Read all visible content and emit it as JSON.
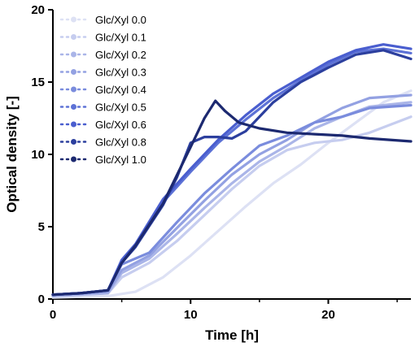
{
  "chart_data": {
    "type": "line",
    "title": "",
    "xlabel": "Time [h]",
    "ylabel": "Optical density [-]",
    "xlim": [
      0,
      26
    ],
    "ylim": [
      0,
      20
    ],
    "xticks": [
      0,
      10,
      20
    ],
    "yticks": [
      0,
      5,
      10,
      15,
      20
    ],
    "grid": false,
    "legend_position": "top-left",
    "series": [
      {
        "name": "Glc/Xyl 0.0",
        "color": "#dde1f4",
        "points": [
          [
            0,
            0.1
          ],
          [
            2,
            0.15
          ],
          [
            4,
            0.2
          ],
          [
            6,
            0.5
          ],
          [
            8,
            1.5
          ],
          [
            10,
            3.0
          ],
          [
            12,
            4.7
          ],
          [
            14,
            6.4
          ],
          [
            16,
            8.0
          ],
          [
            18,
            9.3
          ],
          [
            20,
            10.8
          ],
          [
            22,
            12.2
          ],
          [
            24,
            13.6
          ],
          [
            26,
            14.4
          ]
        ]
      },
      {
        "name": "Glc/Xyl 0.1",
        "color": "#c6cdef",
        "points": [
          [
            0,
            0.2
          ],
          [
            2,
            0.3
          ],
          [
            4,
            0.4
          ],
          [
            5,
            1.5
          ],
          [
            7,
            2.5
          ],
          [
            9,
            4.0
          ],
          [
            11,
            5.8
          ],
          [
            13,
            7.6
          ],
          [
            15,
            9.2
          ],
          [
            17,
            10.3
          ],
          [
            19,
            10.8
          ],
          [
            21,
            11.0
          ],
          [
            23,
            11.5
          ],
          [
            26,
            12.6
          ]
        ]
      },
      {
        "name": "Glc/Xyl 0.2",
        "color": "#aab5e8",
        "points": [
          [
            0,
            0.2
          ],
          [
            2,
            0.3
          ],
          [
            4,
            0.4
          ],
          [
            5,
            1.8
          ],
          [
            7,
            2.8
          ],
          [
            9,
            4.5
          ],
          [
            11,
            6.3
          ],
          [
            13,
            8.0
          ],
          [
            15,
            9.5
          ],
          [
            17,
            10.6
          ],
          [
            19,
            11.8
          ],
          [
            21,
            12.6
          ],
          [
            23,
            13.3
          ],
          [
            26,
            13.6
          ]
        ]
      },
      {
        "name": "Glc/Xyl 0.3",
        "color": "#93a1e2",
        "points": [
          [
            0,
            0.3
          ],
          [
            2,
            0.4
          ],
          [
            4,
            0.5
          ],
          [
            5,
            2.0
          ],
          [
            7,
            3.0
          ],
          [
            9,
            4.9
          ],
          [
            11,
            6.8
          ],
          [
            13,
            8.6
          ],
          [
            15,
            10.0
          ],
          [
            17,
            11.0
          ],
          [
            19,
            12.2
          ],
          [
            21,
            13.2
          ],
          [
            23,
            13.9
          ],
          [
            26,
            14.1
          ]
        ]
      },
      {
        "name": "Glc/Xyl 0.4",
        "color": "#7a8cdd",
        "points": [
          [
            0,
            0.3
          ],
          [
            2,
            0.4
          ],
          [
            4,
            0.6
          ],
          [
            5,
            2.4
          ],
          [
            7,
            3.2
          ],
          [
            9,
            5.3
          ],
          [
            11,
            7.3
          ],
          [
            13,
            9.0
          ],
          [
            15,
            10.6
          ],
          [
            17,
            11.3
          ],
          [
            19,
            12.2
          ],
          [
            21,
            12.6
          ],
          [
            23,
            13.2
          ],
          [
            26,
            13.4
          ]
        ]
      },
      {
        "name": "Glc/Xyl 0.5",
        "color": "#5d72d6",
        "points": [
          [
            0,
            0.3
          ],
          [
            2,
            0.4
          ],
          [
            4,
            0.6
          ],
          [
            5,
            2.6
          ],
          [
            6,
            3.6
          ],
          [
            8,
            6.7
          ],
          [
            10,
            8.8
          ],
          [
            12,
            10.8
          ],
          [
            14,
            12.4
          ],
          [
            16,
            13.9
          ],
          [
            18,
            15.1
          ],
          [
            20,
            16.2
          ],
          [
            22,
            17.1
          ],
          [
            24,
            17.3
          ],
          [
            26,
            17.0
          ]
        ]
      },
      {
        "name": "Glc/Xyl 0.6",
        "color": "#4a5ecf",
        "points": [
          [
            0,
            0.3
          ],
          [
            2,
            0.4
          ],
          [
            4,
            0.6
          ],
          [
            5,
            2.7
          ],
          [
            6,
            3.8
          ],
          [
            8,
            6.9
          ],
          [
            10,
            9.0
          ],
          [
            12,
            11.0
          ],
          [
            14,
            12.7
          ],
          [
            16,
            14.2
          ],
          [
            18,
            15.3
          ],
          [
            20,
            16.4
          ],
          [
            22,
            17.2
          ],
          [
            24,
            17.6
          ],
          [
            26,
            17.3
          ]
        ]
      },
      {
        "name": "Glc/Xyl 0.8",
        "color": "#2c3f9e",
        "points": [
          [
            0,
            0.3
          ],
          [
            2,
            0.4
          ],
          [
            4,
            0.6
          ],
          [
            5,
            2.5
          ],
          [
            6,
            3.6
          ],
          [
            8,
            6.5
          ],
          [
            9,
            8.4
          ],
          [
            10,
            10.8
          ],
          [
            11,
            11.2
          ],
          [
            12,
            11.2
          ],
          [
            13,
            11.1
          ],
          [
            14,
            11.6
          ],
          [
            16,
            13.6
          ],
          [
            18,
            15.0
          ],
          [
            20,
            16.0
          ],
          [
            22,
            16.9
          ],
          [
            24,
            17.2
          ],
          [
            26,
            16.6
          ]
        ]
      },
      {
        "name": "Glc/Xyl 1.0",
        "color": "#1c2970",
        "points": [
          [
            0,
            0.3
          ],
          [
            2,
            0.4
          ],
          [
            4,
            0.6
          ],
          [
            5,
            2.5
          ],
          [
            6,
            3.7
          ],
          [
            8,
            6.6
          ],
          [
            10,
            10.5
          ],
          [
            11,
            12.5
          ],
          [
            11.8,
            13.7
          ],
          [
            12.5,
            13.0
          ],
          [
            13.5,
            12.2
          ],
          [
            15,
            11.8
          ],
          [
            17,
            11.5
          ],
          [
            19,
            11.4
          ],
          [
            21,
            11.3
          ],
          [
            23,
            11.1
          ],
          [
            26,
            10.9
          ]
        ]
      }
    ]
  }
}
